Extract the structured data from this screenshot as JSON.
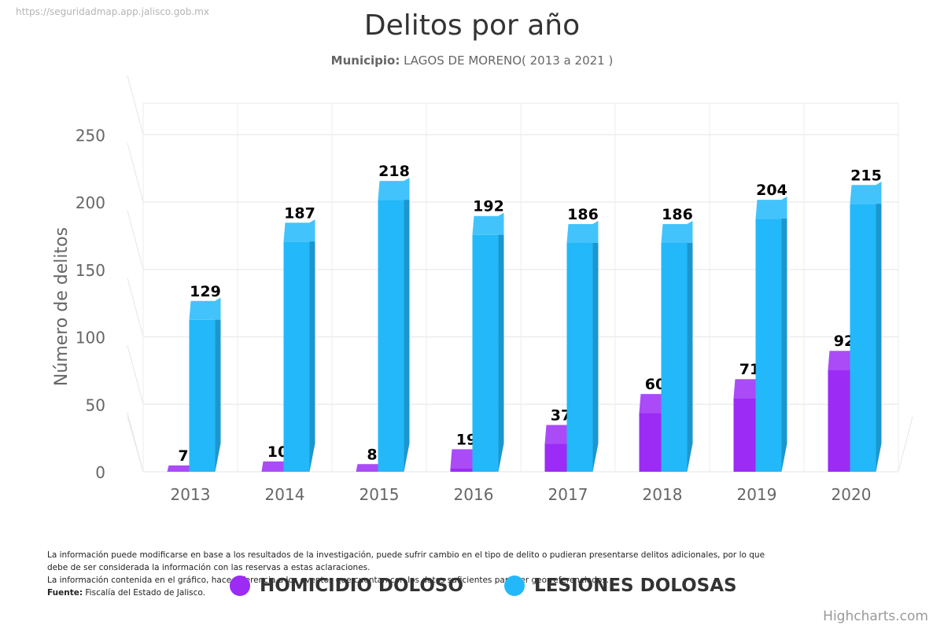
{
  "source_url": "https://seguridadmap.app.jalisco.gob.mx",
  "subtitle": {
    "label": "Municipio:",
    "value": "LAGOS DE MORENO( 2013 a 2021 )"
  },
  "note": {
    "line1": "La información puede modificarse en base a los resultados de la investigación, puede sufrir cambio en el tipo de delito o pudieran presentarse delitos adicionales, por lo que debe de ser considerada la información con las reservas a estas aclaraciones.",
    "line2": "La información contenida en el gráfico, hace referencia a los eventos que cuentan con los datos suficientes para ser georreferenciados.",
    "source_label": "Fuente:",
    "source_value": "Fiscalía del Estado de Jalisco."
  },
  "credits": "Highcharts.com",
  "chart_data": {
    "type": "bar",
    "title": "Delitos por año",
    "xlabel": "",
    "ylabel": "Número de delitos",
    "ylim": [
      0,
      250
    ],
    "yticks": [
      0,
      50,
      100,
      150,
      200,
      250
    ],
    "categories": [
      "2013",
      "2014",
      "2015",
      "2016",
      "2017",
      "2018",
      "2019",
      "2020"
    ],
    "series": [
      {
        "name": "HOMICIDIO DOLOSO",
        "color": "#9b2bf5",
        "values": [
          7,
          10,
          8,
          19,
          37,
          60,
          71,
          92
        ]
      },
      {
        "name": "LESIONES DOLOSAS",
        "color": "#22b8fa",
        "values": [
          129,
          187,
          218,
          192,
          186,
          186,
          204,
          215
        ]
      }
    ],
    "legend": "bottom-center",
    "grid": true
  }
}
